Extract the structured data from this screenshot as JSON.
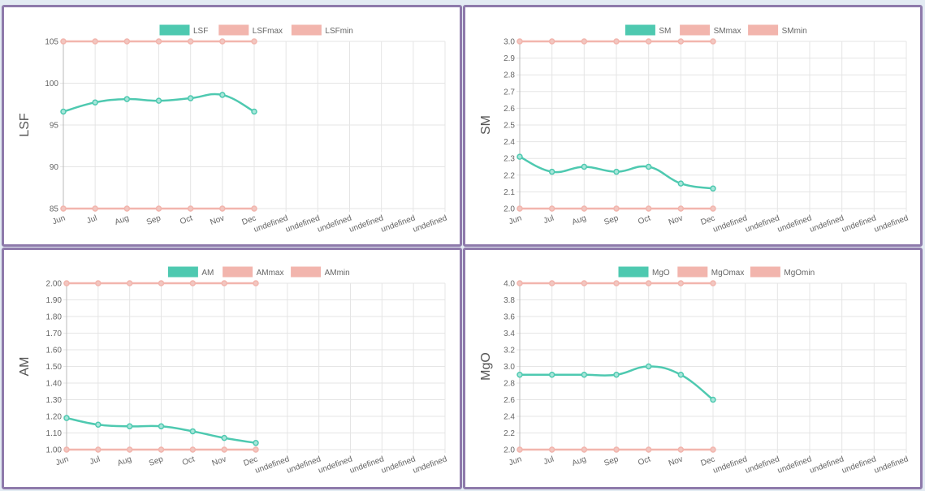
{
  "colors": {
    "main": "#4ec9b0",
    "limit": "#f2b5ad",
    "grid": "#e5e5e5",
    "border": "#8e7aab"
  },
  "chart_data": [
    {
      "type": "line",
      "title": "",
      "ylabel": "LSF",
      "xlabel": "",
      "categories": [
        "Jun",
        "Jul",
        "Aug",
        "Sep",
        "Oct",
        "Nov",
        "Dec",
        "undefined",
        "undefined",
        "undefined",
        "undefined",
        "undefined",
        "undefined"
      ],
      "ylim": [
        85,
        105
      ],
      "yticks": [
        "105",
        "100",
        "95",
        "90",
        "85"
      ],
      "ytick_values": [
        105,
        100,
        95,
        90,
        85
      ],
      "legend_position": "top",
      "grid": true,
      "series": [
        {
          "name": "LSF",
          "values": [
            96.6,
            97.7,
            98.1,
            97.9,
            98.2,
            98.6,
            96.6
          ]
        },
        {
          "name": "LSFmax",
          "values": [
            105,
            105,
            105,
            105,
            105,
            105,
            105
          ]
        },
        {
          "name": "LSFmin",
          "values": [
            85,
            85,
            85,
            85,
            85,
            85,
            85
          ]
        }
      ]
    },
    {
      "type": "line",
      "title": "",
      "ylabel": "SM",
      "xlabel": "",
      "categories": [
        "Jun",
        "Jul",
        "Aug",
        "Sep",
        "Oct",
        "Nov",
        "Dec",
        "undefined",
        "undefined",
        "undefined",
        "undefined",
        "undefined",
        "undefined"
      ],
      "ylim": [
        2.0,
        3.0
      ],
      "yticks": [
        "3.0",
        "2.9",
        "2.8",
        "2.7",
        "2.6",
        "2.5",
        "2.4",
        "2.3",
        "2.2",
        "2.1",
        "2.0"
      ],
      "ytick_values": [
        3.0,
        2.9,
        2.8,
        2.7,
        2.6,
        2.5,
        2.4,
        2.3,
        2.2,
        2.1,
        2.0
      ],
      "legend_position": "top",
      "grid": true,
      "series": [
        {
          "name": "SM",
          "values": [
            2.31,
            2.22,
            2.25,
            2.22,
            2.25,
            2.15,
            2.12
          ]
        },
        {
          "name": "SMmax",
          "values": [
            3,
            3,
            3,
            3,
            3,
            3,
            3
          ]
        },
        {
          "name": "SMmin",
          "values": [
            2,
            2,
            2,
            2,
            2,
            2,
            2
          ]
        }
      ]
    },
    {
      "type": "line",
      "title": "",
      "ylabel": "AM",
      "xlabel": "",
      "categories": [
        "Jun",
        "Jul",
        "Aug",
        "Sep",
        "Oct",
        "Nov",
        "Dec",
        "undefined",
        "undefined",
        "undefined",
        "undefined",
        "undefined",
        "undefined"
      ],
      "ylim": [
        1.0,
        2.0
      ],
      "yticks": [
        "2.00",
        "1.90",
        "1.80",
        "1.70",
        "1.60",
        "1.50",
        "1.40",
        "1.30",
        "1.20",
        "1.10",
        "1.00"
      ],
      "ytick_values": [
        2.0,
        1.9,
        1.8,
        1.7,
        1.6,
        1.5,
        1.4,
        1.3,
        1.2,
        1.1,
        1.0
      ],
      "legend_position": "top",
      "grid": true,
      "series": [
        {
          "name": "AM",
          "values": [
            1.19,
            1.15,
            1.14,
            1.14,
            1.11,
            1.07,
            1.04
          ]
        },
        {
          "name": "AMmax",
          "values": [
            2,
            2,
            2,
            2,
            2,
            2,
            2
          ]
        },
        {
          "name": "AMmin",
          "values": [
            1,
            1,
            1,
            1,
            1,
            1,
            1
          ]
        }
      ]
    },
    {
      "type": "line",
      "title": "",
      "ylabel": "MgO",
      "xlabel": "",
      "categories": [
        "Jun",
        "Jul",
        "Aug",
        "Sep",
        "Oct",
        "Nov",
        "Dec",
        "undefined",
        "undefined",
        "undefined",
        "undefined",
        "undefined",
        "undefined"
      ],
      "ylim": [
        2.0,
        4.0
      ],
      "yticks": [
        "4.0",
        "3.8",
        "3.6",
        "3.4",
        "3.2",
        "3.0",
        "2.8",
        "2.6",
        "2.4",
        "2.2",
        "2.0"
      ],
      "ytick_values": [
        4.0,
        3.8,
        3.6,
        3.4,
        3.2,
        3.0,
        2.8,
        2.6,
        2.4,
        2.2,
        2.0
      ],
      "legend_position": "top",
      "grid": true,
      "series": [
        {
          "name": "MgO",
          "values": [
            2.9,
            2.9,
            2.9,
            2.9,
            3.0,
            2.9,
            2.6
          ]
        },
        {
          "name": "MgOmax",
          "values": [
            4,
            4,
            4,
            4,
            4,
            4,
            4
          ]
        },
        {
          "name": "MgOmin",
          "values": [
            2,
            2,
            2,
            2,
            2,
            2,
            2
          ]
        }
      ]
    }
  ]
}
